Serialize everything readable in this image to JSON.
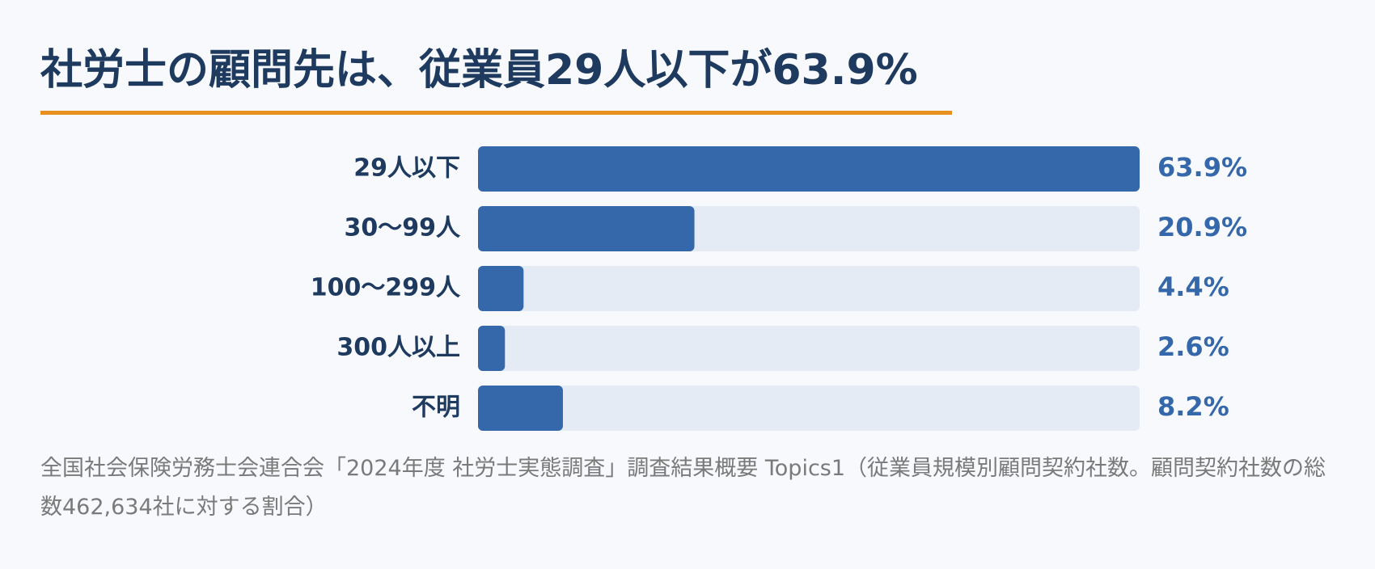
{
  "chart_data": {
    "type": "barh",
    "title": "社労士の顧問先は、従業員29人以下が63.9%",
    "categories": [
      "29人以下",
      "30〜99人",
      "100〜299人",
      "300人以上",
      "不明"
    ],
    "values": [
      63.9,
      20.9,
      4.4,
      2.6,
      8.2
    ],
    "value_labels": [
      "63.9%",
      "20.9%",
      "4.4%",
      "2.6%",
      "8.2%"
    ],
    "color": "#3567ab",
    "source": "全国社会保険労務士会連合会「2024年度 社労士実態調査」調査結果概要 Topics1（従業員規模別顧問契約社数。顧問契約社数の総数462,634社に対する割合）"
  }
}
